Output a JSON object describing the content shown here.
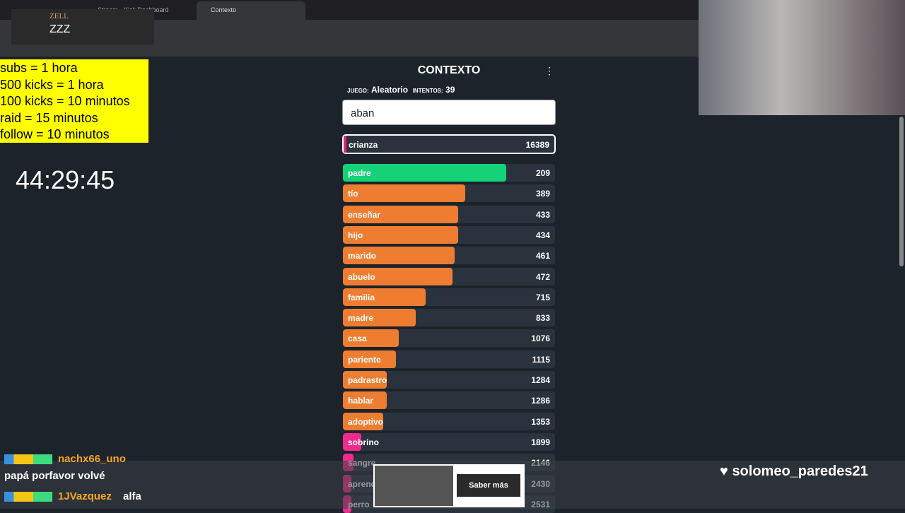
{
  "browser": {
    "tabs": [
      "Stream - Kick Dashboard",
      "Contexto"
    ]
  },
  "overlay": {
    "streamer": "ZELL",
    "status": "ZZZ",
    "rules": [
      "subs = 1 hora",
      "500 kicks = 1 hora",
      "100 kicks = 10 minutos",
      "raid = 15 minutos",
      "follow = 10 minutos"
    ],
    "timer": "44:29:45",
    "follow_alert": "solomeo_paredes21"
  },
  "game": {
    "title": "CONTEXTO",
    "game_label": "JUEGO:",
    "game_mode": "Aleatorio",
    "attempts_label": "INTENTOS:",
    "attempts": 39,
    "input": "aban",
    "last_guess": {
      "word": "crianza",
      "rank": 16389
    },
    "guesses": [
      {
        "word": "padre",
        "rank": 209
      },
      {
        "word": "tío",
        "rank": 389
      },
      {
        "word": "enseñar",
        "rank": 433
      },
      {
        "word": "hijo",
        "rank": 434
      },
      {
        "word": "marido",
        "rank": 461
      },
      {
        "word": "abuelo",
        "rank": 472
      },
      {
        "word": "familia",
        "rank": 715
      },
      {
        "word": "madre",
        "rank": 833
      },
      {
        "word": "casa",
        "rank": 1076
      },
      {
        "word": "pariente",
        "rank": 1115
      },
      {
        "word": "padrastro",
        "rank": 1284
      },
      {
        "word": "hablar",
        "rank": 1286
      },
      {
        "word": "adoptivo",
        "rank": 1353
      },
      {
        "word": "sobrino",
        "rank": 1899
      },
      {
        "word": "sangre",
        "rank": 2146
      },
      {
        "word": "aprender",
        "rank": 2430
      },
      {
        "word": "perro",
        "rank": 2531
      }
    ]
  },
  "chat": [
    {
      "user": "nachx66_uno",
      "message": "papá porfavor volvé"
    },
    {
      "user": "1JVazquez",
      "message": "alfa"
    }
  ],
  "ad": {
    "button": "Saber más"
  }
}
